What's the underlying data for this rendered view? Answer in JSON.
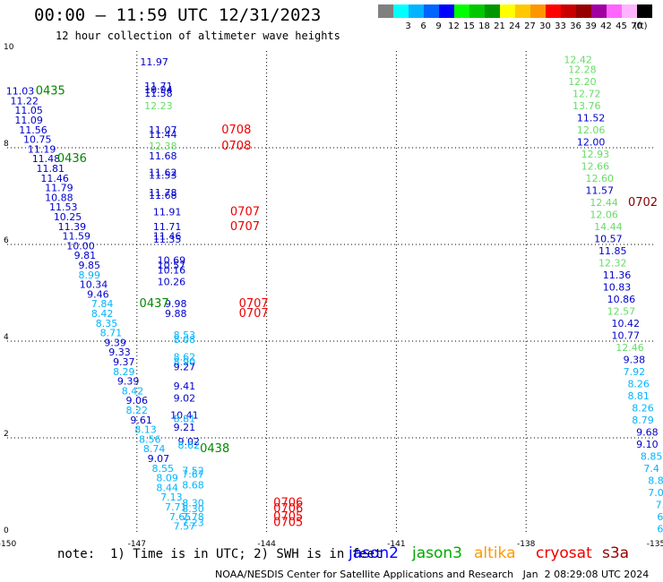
{
  "header": {
    "title": "00:00 – 11:59 UTC 12/31/2023",
    "subtitle": "12 hour collection of altimeter wave heights"
  },
  "color_scale": {
    "unit": "(ft)",
    "bins": [
      {
        "label": "",
        "color": "#808080"
      },
      {
        "label": "3",
        "color": "#00ffff"
      },
      {
        "label": "6",
        "color": "#00b4ff"
      },
      {
        "label": "9",
        "color": "#0064ff"
      },
      {
        "label": "12",
        "color": "#0000ff"
      },
      {
        "label": "15",
        "color": "#00ff00"
      },
      {
        "label": "18",
        "color": "#00c800"
      },
      {
        "label": "21",
        "color": "#009600"
      },
      {
        "label": "24",
        "color": "#ffff00"
      },
      {
        "label": "27",
        "color": "#ffc800"
      },
      {
        "label": "30",
        "color": "#ff9600"
      },
      {
        "label": "33",
        "color": "#ff0000"
      },
      {
        "label": "36",
        "color": "#c80000"
      },
      {
        "label": "39",
        "color": "#960000"
      },
      {
        "label": "42",
        "color": "#a000a0"
      },
      {
        "label": "45",
        "color": "#ff64ff"
      },
      {
        "label": "70",
        "color": "#ffb4ff"
      },
      {
        "label": "",
        "color": "#000000"
      }
    ]
  },
  "chart_data": {
    "type": "scatter",
    "xlim": [
      -150,
      -135
    ],
    "ylim": [
      0,
      10
    ],
    "x_ticks": [
      "-150",
      "-147",
      "-144",
      "-141",
      "-138",
      "-135"
    ],
    "y_ticks": [
      "0",
      "2",
      "4",
      "6",
      "8",
      "10"
    ],
    "x_tick_values": [
      -150,
      -147,
      -144,
      -141,
      -138,
      -135
    ],
    "y_tick_values": [
      0,
      2,
      4,
      6,
      8,
      10
    ],
    "grid": true,
    "points": [
      {
        "x": -149.7,
        "y": 9.1,
        "label": "11.03",
        "color": "#0000cc"
      },
      {
        "x": -149.6,
        "y": 8.9,
        "label": "11.22",
        "color": "#0000cc"
      },
      {
        "x": -149.5,
        "y": 8.7,
        "label": "11.05",
        "color": "#0000cc"
      },
      {
        "x": -149.5,
        "y": 8.5,
        "label": "11.09",
        "color": "#0000cc"
      },
      {
        "x": -149.4,
        "y": 8.3,
        "label": "11.56",
        "color": "#0000cc"
      },
      {
        "x": -149.3,
        "y": 8.1,
        "label": "10.75",
        "color": "#0000cc"
      },
      {
        "x": -149.2,
        "y": 7.9,
        "label": "11.19",
        "color": "#0000cc"
      },
      {
        "x": -149.1,
        "y": 7.7,
        "label": "11.48",
        "color": "#0000cc"
      },
      {
        "x": -149.0,
        "y": 7.5,
        "label": "11.81",
        "color": "#0000cc"
      },
      {
        "x": -148.9,
        "y": 7.3,
        "label": "11.46",
        "color": "#0000cc"
      },
      {
        "x": -148.8,
        "y": 7.1,
        "label": "11.79",
        "color": "#0000cc"
      },
      {
        "x": -148.8,
        "y": 6.9,
        "label": "10.88",
        "color": "#0000cc"
      },
      {
        "x": -148.7,
        "y": 6.7,
        "label": "11.53",
        "color": "#0000cc"
      },
      {
        "x": -148.6,
        "y": 6.5,
        "label": "10.25",
        "color": "#0000cc"
      },
      {
        "x": -148.5,
        "y": 6.3,
        "label": "11.39",
        "color": "#0000cc"
      },
      {
        "x": -148.4,
        "y": 6.1,
        "label": "11.59",
        "color": "#0000cc"
      },
      {
        "x": -148.3,
        "y": 5.9,
        "label": "10.00",
        "color": "#0000cc"
      },
      {
        "x": -148.2,
        "y": 5.7,
        "label": "9.81",
        "color": "#0000cc"
      },
      {
        "x": -148.1,
        "y": 5.5,
        "label": "9.85",
        "color": "#0000cc"
      },
      {
        "x": -148.1,
        "y": 5.3,
        "label": "8.99",
        "color": "#00b4ff"
      },
      {
        "x": -148.0,
        "y": 5.1,
        "label": "10.34",
        "color": "#0000cc"
      },
      {
        "x": -147.9,
        "y": 4.9,
        "label": "9.46",
        "color": "#0000cc"
      },
      {
        "x": -147.8,
        "y": 4.7,
        "label": "7.84",
        "color": "#00b4ff"
      },
      {
        "x": -147.8,
        "y": 4.5,
        "label": "8.42",
        "color": "#00b4ff"
      },
      {
        "x": -147.7,
        "y": 4.3,
        "label": "8.35",
        "color": "#00b4ff"
      },
      {
        "x": -147.6,
        "y": 4.1,
        "label": "8.71",
        "color": "#00b4ff"
      },
      {
        "x": -147.5,
        "y": 3.9,
        "label": "9.39",
        "color": "#0000cc"
      },
      {
        "x": -147.4,
        "y": 3.7,
        "label": "9.33",
        "color": "#0000cc"
      },
      {
        "x": -147.3,
        "y": 3.5,
        "label": "9.37",
        "color": "#0000cc"
      },
      {
        "x": -147.3,
        "y": 3.3,
        "label": "8.29",
        "color": "#00b4ff"
      },
      {
        "x": -147.2,
        "y": 3.1,
        "label": "9.39",
        "color": "#0000cc"
      },
      {
        "x": -147.1,
        "y": 2.9,
        "label": "8.42",
        "color": "#00b4ff"
      },
      {
        "x": -147.0,
        "y": 2.7,
        "label": "9.06",
        "color": "#0000cc"
      },
      {
        "x": -147.0,
        "y": 2.5,
        "label": "8.22",
        "color": "#00b4ff"
      },
      {
        "x": -146.9,
        "y": 2.3,
        "label": "9.61",
        "color": "#0000cc"
      },
      {
        "x": -146.8,
        "y": 2.1,
        "label": "8.13",
        "color": "#00b4ff"
      },
      {
        "x": -146.7,
        "y": 1.9,
        "label": "8.56",
        "color": "#00b4ff"
      },
      {
        "x": -146.6,
        "y": 1.7,
        "label": "8.74",
        "color": "#00b4ff"
      },
      {
        "x": -146.5,
        "y": 1.5,
        "label": "9.07",
        "color": "#0000cc"
      },
      {
        "x": -146.4,
        "y": 1.3,
        "label": "8.55",
        "color": "#00b4ff"
      },
      {
        "x": -146.3,
        "y": 1.1,
        "label": "8.09",
        "color": "#00b4ff"
      },
      {
        "x": -146.3,
        "y": 0.9,
        "label": "8.44",
        "color": "#00b4ff"
      },
      {
        "x": -146.2,
        "y": 0.7,
        "label": "7.13",
        "color": "#00b4ff"
      },
      {
        "x": -146.1,
        "y": 0.5,
        "label": "7.71",
        "color": "#00b4ff"
      },
      {
        "x": -146.0,
        "y": 0.3,
        "label": "7.65",
        "color": "#00b4ff"
      },
      {
        "x": -145.9,
        "y": 0.1,
        "label": "7.57",
        "color": "#00b4ff"
      },
      {
        "x": -146.6,
        "y": 9.7,
        "label": "11.97",
        "color": "#0000cc"
      },
      {
        "x": -146.5,
        "y": 9.2,
        "label": "11.71",
        "color": "#0000cc"
      },
      {
        "x": -146.5,
        "y": 9.13,
        "label": "10.94",
        "color": "#0000cc"
      },
      {
        "x": -146.5,
        "y": 9.06,
        "label": "11.58",
        "color": "#0000cc"
      },
      {
        "x": -146.5,
        "y": 8.8,
        "label": "12.23",
        "color": "#66dd66"
      },
      {
        "x": -146.4,
        "y": 8.3,
        "label": "11.07",
        "color": "#0000cc"
      },
      {
        "x": -146.4,
        "y": 8.2,
        "label": "11.44",
        "color": "#0000cc"
      },
      {
        "x": -146.4,
        "y": 7.96,
        "label": "12.38",
        "color": "#66dd66"
      },
      {
        "x": -146.4,
        "y": 7.76,
        "label": "11.68",
        "color": "#0000cc"
      },
      {
        "x": -146.4,
        "y": 7.42,
        "label": "11.62",
        "color": "#0000cc"
      },
      {
        "x": -146.4,
        "y": 7.36,
        "label": "11.53",
        "color": "#0000cc"
      },
      {
        "x": -146.4,
        "y": 7.0,
        "label": "11.78",
        "color": "#0000cc"
      },
      {
        "x": -146.4,
        "y": 6.94,
        "label": "11.68",
        "color": "#0000cc"
      },
      {
        "x": -146.3,
        "y": 6.6,
        "label": "11.91",
        "color": "#0000cc"
      },
      {
        "x": -146.3,
        "y": 6.3,
        "label": "11.71",
        "color": "#0000cc"
      },
      {
        "x": -146.3,
        "y": 6.1,
        "label": "11.46",
        "color": "#0000cc"
      },
      {
        "x": -146.3,
        "y": 6.04,
        "label": "11.35",
        "color": "#0000cc"
      },
      {
        "x": -146.2,
        "y": 5.6,
        "label": "10.69",
        "color": "#0000cc"
      },
      {
        "x": -146.2,
        "y": 5.5,
        "label": "10.57",
        "color": "#0000cc"
      },
      {
        "x": -146.2,
        "y": 5.4,
        "label": "10.16",
        "color": "#0000cc"
      },
      {
        "x": -146.2,
        "y": 5.16,
        "label": "10.26",
        "color": "#0000cc"
      },
      {
        "x": -146.1,
        "y": 4.7,
        "label": "9.98",
        "color": "#0000cc"
      },
      {
        "x": -146.1,
        "y": 4.5,
        "label": "9.88",
        "color": "#0000cc"
      },
      {
        "x": -145.9,
        "y": 4.06,
        "label": "8.53",
        "color": "#00b4ff"
      },
      {
        "x": -145.9,
        "y": 3.96,
        "label": "8.08",
        "color": "#00b4ff"
      },
      {
        "x": -145.9,
        "y": 3.6,
        "label": "8.62",
        "color": "#00b4ff"
      },
      {
        "x": -145.9,
        "y": 3.5,
        "label": "8.90",
        "color": "#00b4ff"
      },
      {
        "x": -145.9,
        "y": 3.4,
        "label": "9.27",
        "color": "#0000cc"
      },
      {
        "x": -145.9,
        "y": 3.0,
        "label": "9.41",
        "color": "#0000cc"
      },
      {
        "x": -145.9,
        "y": 2.75,
        "label": "9.02",
        "color": "#0000cc"
      },
      {
        "x": -145.9,
        "y": 2.4,
        "label": "10.41",
        "color": "#0000cc"
      },
      {
        "x": -145.9,
        "y": 2.32,
        "label": "8.81",
        "color": "#00b4ff"
      },
      {
        "x": -145.9,
        "y": 2.15,
        "label": "9.21",
        "color": "#0000cc"
      },
      {
        "x": -145.8,
        "y": 1.85,
        "label": "9.02",
        "color": "#0000cc"
      },
      {
        "x": -145.8,
        "y": 1.78,
        "label": "8.62",
        "color": "#00b4ff"
      },
      {
        "x": -145.7,
        "y": 1.25,
        "label": "7.52",
        "color": "#00b4ff"
      },
      {
        "x": -145.7,
        "y": 1.18,
        "label": "7.67",
        "color": "#00b4ff"
      },
      {
        "x": -145.7,
        "y": 0.95,
        "label": "8.68",
        "color": "#00b4ff"
      },
      {
        "x": -145.7,
        "y": 0.58,
        "label": "8.30",
        "color": "#00b4ff"
      },
      {
        "x": -145.7,
        "y": 0.46,
        "label": "8.30",
        "color": "#00b4ff"
      },
      {
        "x": -145.7,
        "y": 0.3,
        "label": "7.78",
        "color": "#00b4ff"
      },
      {
        "x": -145.7,
        "y": 0.18,
        "label": "7.23",
        "color": "#00b4ff"
      },
      {
        "x": -136.8,
        "y": 9.75,
        "label": "12.42",
        "color": "#66dd66"
      },
      {
        "x": -136.7,
        "y": 9.55,
        "label": "12.28",
        "color": "#66dd66"
      },
      {
        "x": -136.7,
        "y": 9.3,
        "label": "12.20",
        "color": "#66dd66"
      },
      {
        "x": -136.6,
        "y": 9.05,
        "label": "12.72",
        "color": "#66dd66"
      },
      {
        "x": -136.6,
        "y": 8.8,
        "label": "13.76",
        "color": "#66dd66"
      },
      {
        "x": -136.5,
        "y": 8.55,
        "label": "11.52",
        "color": "#0000cc"
      },
      {
        "x": -136.5,
        "y": 8.3,
        "label": "12.06",
        "color": "#66dd66"
      },
      {
        "x": -136.5,
        "y": 8.05,
        "label": "12.00",
        "color": "#0000cc"
      },
      {
        "x": -136.4,
        "y": 7.8,
        "label": "12.93",
        "color": "#66dd66"
      },
      {
        "x": -136.4,
        "y": 7.55,
        "label": "12.66",
        "color": "#66dd66"
      },
      {
        "x": -136.3,
        "y": 7.3,
        "label": "12.60",
        "color": "#66dd66"
      },
      {
        "x": -136.3,
        "y": 7.05,
        "label": "11.57",
        "color": "#0000cc"
      },
      {
        "x": -136.2,
        "y": 6.8,
        "label": "12.44",
        "color": "#66dd66"
      },
      {
        "x": -136.2,
        "y": 6.55,
        "label": "12.06",
        "color": "#66dd66"
      },
      {
        "x": -136.1,
        "y": 6.3,
        "label": "14.44",
        "color": "#66dd66"
      },
      {
        "x": -136.1,
        "y": 6.05,
        "label": "10.57",
        "color": "#0000cc"
      },
      {
        "x": -136.0,
        "y": 5.8,
        "label": "11.85",
        "color": "#0000cc"
      },
      {
        "x": -136.0,
        "y": 5.55,
        "label": "12.32",
        "color": "#66dd66"
      },
      {
        "x": -135.9,
        "y": 5.3,
        "label": "11.36",
        "color": "#0000cc"
      },
      {
        "x": -135.9,
        "y": 5.05,
        "label": "10.83",
        "color": "#0000cc"
      },
      {
        "x": -135.8,
        "y": 4.8,
        "label": "10.86",
        "color": "#0000cc"
      },
      {
        "x": -135.8,
        "y": 4.55,
        "label": "12.57",
        "color": "#66dd66"
      },
      {
        "x": -135.7,
        "y": 4.3,
        "label": "10.42",
        "color": "#0000cc"
      },
      {
        "x": -135.7,
        "y": 4.05,
        "label": "10.77",
        "color": "#0000cc"
      },
      {
        "x": -135.6,
        "y": 3.8,
        "label": "12.46",
        "color": "#66dd66"
      },
      {
        "x": -135.5,
        "y": 3.55,
        "label": "9.38",
        "color": "#0000cc"
      },
      {
        "x": -135.5,
        "y": 3.3,
        "label": "7.92",
        "color": "#00b4ff"
      },
      {
        "x": -135.4,
        "y": 3.05,
        "label": "8.26",
        "color": "#00b4ff"
      },
      {
        "x": -135.4,
        "y": 2.8,
        "label": "8.81",
        "color": "#00b4ff"
      },
      {
        "x": -135.3,
        "y": 2.55,
        "label": "8.26",
        "color": "#00b4ff"
      },
      {
        "x": -135.3,
        "y": 2.3,
        "label": "8.79",
        "color": "#00b4ff"
      },
      {
        "x": -135.2,
        "y": 2.05,
        "label": "9.68",
        "color": "#0000cc"
      },
      {
        "x": -135.2,
        "y": 1.8,
        "label": "9.10",
        "color": "#0000cc"
      },
      {
        "x": -135.1,
        "y": 1.55,
        "label": "8.85",
        "color": "#00b4ff"
      },
      {
        "x": -135.1,
        "y": 1.3,
        "label": "7.4",
        "color": "#00b4ff"
      },
      {
        "x": -135.0,
        "y": 1.05,
        "label": "8.8",
        "color": "#00b4ff"
      },
      {
        "x": -135.0,
        "y": 0.8,
        "label": "7.0",
        "color": "#00b4ff"
      },
      {
        "x": -134.9,
        "y": 0.55,
        "label": "7.",
        "color": "#00b4ff"
      },
      {
        "x": -134.9,
        "y": 0.3,
        "label": "6",
        "color": "#00b4ff"
      },
      {
        "x": -134.9,
        "y": 0.05,
        "label": "6",
        "color": "#00b4ff"
      }
    ],
    "time_labels": [
      {
        "x": -149.0,
        "y": 9.1,
        "label": "0435",
        "color": "#008800"
      },
      {
        "x": -148.5,
        "y": 7.7,
        "label": "0436",
        "color": "#008800"
      },
      {
        "x": -146.6,
        "y": 4.7,
        "label": "0437",
        "color": "#008800"
      },
      {
        "x": -145.2,
        "y": 1.7,
        "label": "0438",
        "color": "#008800"
      },
      {
        "x": -144.7,
        "y": 8.3,
        "label": "0708",
        "color": "#ee0000"
      },
      {
        "x": -144.7,
        "y": 7.96,
        "label": "0708",
        "color": "#ee0000"
      },
      {
        "x": -144.5,
        "y": 6.6,
        "label": "0707",
        "color": "#ee0000"
      },
      {
        "x": -144.5,
        "y": 6.3,
        "label": "0707",
        "color": "#ee0000"
      },
      {
        "x": -144.3,
        "y": 4.7,
        "label": "0707",
        "color": "#ee0000"
      },
      {
        "x": -144.3,
        "y": 4.5,
        "label": "0707",
        "color": "#ee0000"
      },
      {
        "x": -143.5,
        "y": 0.58,
        "label": "0706",
        "color": "#ee0000"
      },
      {
        "x": -143.5,
        "y": 0.46,
        "label": "0706",
        "color": "#ee0000"
      },
      {
        "x": -143.5,
        "y": 0.3,
        "label": "0705",
        "color": "#ee0000"
      },
      {
        "x": -143.5,
        "y": 0.18,
        "label": "0705",
        "color": "#ee0000"
      },
      {
        "x": -135.3,
        "y": 6.8,
        "label": "0702",
        "color": "#880000"
      },
      {
        "x": -134.6,
        "y": 3.3,
        "label": "0",
        "color": "#880000"
      }
    ]
  },
  "footer": {
    "note": "note:  1) Time is in UTC; 2) SWH is in feet",
    "legend": [
      {
        "name": "jason2",
        "color": "#0000ff"
      },
      {
        "name": "jason3",
        "color": "#00aa00"
      },
      {
        "name": "altika",
        "color": "#ff9900"
      },
      {
        "name": "cryosat",
        "color": "#ee0000"
      },
      {
        "name": "s3a",
        "color": "#990000"
      }
    ],
    "credit": "NOAA/NESDIS Center for Satellite Applications and Research   Jan  2 08:29:08 UTC 2024"
  }
}
